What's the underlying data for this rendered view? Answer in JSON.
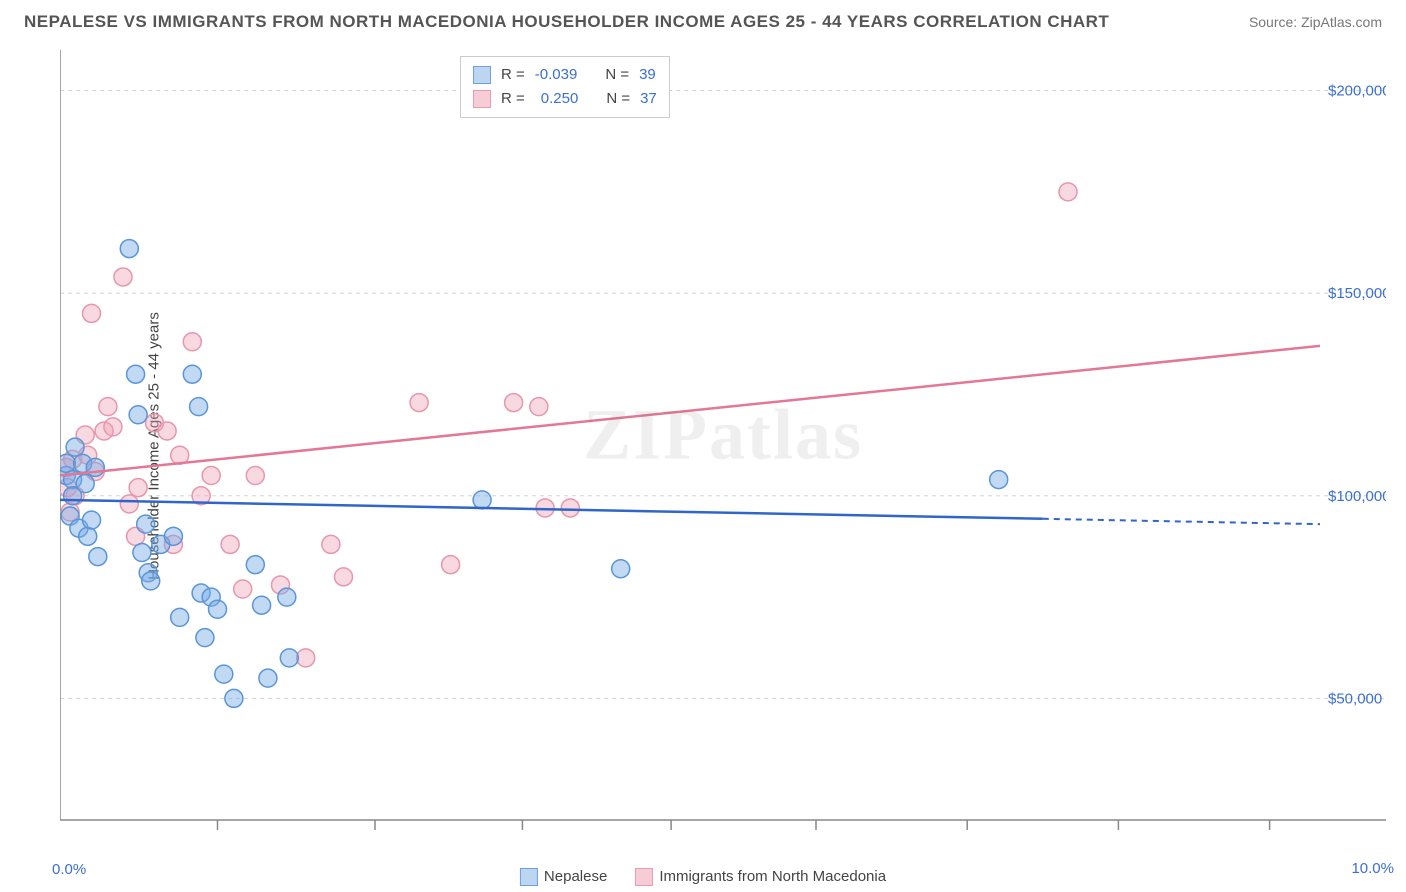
{
  "header": {
    "title": "NEPALESE VS IMMIGRANTS FROM NORTH MACEDONIA HOUSEHOLDER INCOME AGES 25 - 44 YEARS CORRELATION CHART",
    "source_prefix": "Source: ",
    "source_link": "ZipAtlas.com"
  },
  "watermark": "ZIPatlas",
  "chart": {
    "type": "scatter",
    "y_label": "Householder Income Ages 25 - 44 years",
    "xlim": [
      0,
      10
    ],
    "ylim": [
      20000,
      210000
    ],
    "x_ticks": [
      0,
      10
    ],
    "x_tick_labels": [
      "0.0%",
      "10.0%"
    ],
    "x_minor_ticks": [
      1.25,
      2.5,
      3.67,
      4.85,
      6.0,
      7.2,
      8.4,
      9.6
    ],
    "y_ticks": [
      50000,
      100000,
      150000,
      200000
    ],
    "y_tick_labels": [
      "$50,000",
      "$100,000",
      "$150,000",
      "$200,000"
    ],
    "grid_color": "#d5d5d5",
    "background_color": "#ffffff",
    "marker_radius": 9,
    "series_blue": {
      "label": "Nepalese",
      "fill": "rgba(120,170,230,0.45)",
      "stroke": "#5a95d8",
      "swatch_fill": "#bcd5f0",
      "swatch_border": "#6fa0db",
      "R": "-0.039",
      "N": "39",
      "trend": {
        "x0": 0,
        "y0": 99000,
        "x1": 10,
        "y1": 93000,
        "solid_until_x": 7.8
      },
      "points": [
        [
          0.05,
          105000
        ],
        [
          0.05,
          108000
        ],
        [
          0.08,
          95000
        ],
        [
          0.1,
          104000
        ],
        [
          0.1,
          100000
        ],
        [
          0.12,
          112000
        ],
        [
          0.15,
          92000
        ],
        [
          0.18,
          108000
        ],
        [
          0.2,
          103000
        ],
        [
          0.22,
          90000
        ],
        [
          0.25,
          94000
        ],
        [
          0.28,
          107000
        ],
        [
          0.3,
          85000
        ],
        [
          0.55,
          161000
        ],
        [
          0.6,
          130000
        ],
        [
          0.62,
          120000
        ],
        [
          0.65,
          86000
        ],
        [
          0.68,
          93000
        ],
        [
          0.7,
          81000
        ],
        [
          0.72,
          79000
        ],
        [
          0.8,
          88000
        ],
        [
          0.9,
          90000
        ],
        [
          0.95,
          70000
        ],
        [
          1.05,
          130000
        ],
        [
          1.1,
          122000
        ],
        [
          1.12,
          76000
        ],
        [
          1.15,
          65000
        ],
        [
          1.2,
          75000
        ],
        [
          1.25,
          72000
        ],
        [
          1.3,
          56000
        ],
        [
          1.38,
          50000
        ],
        [
          1.55,
          83000
        ],
        [
          1.6,
          73000
        ],
        [
          1.65,
          55000
        ],
        [
          1.8,
          75000
        ],
        [
          1.82,
          60000
        ],
        [
          3.35,
          99000
        ],
        [
          4.45,
          82000
        ],
        [
          7.45,
          104000
        ]
      ]
    },
    "series_pink": {
      "label": "Immigrants from North Macedonia",
      "fill": "rgba(240,160,180,0.4)",
      "stroke": "#e796ab",
      "swatch_fill": "#f6cdd7",
      "swatch_border": "#e99cb1",
      "R": "0.250",
      "N": "37",
      "trend": {
        "x0": 0,
        "y0": 105000,
        "x1": 10,
        "y1": 137000
      },
      "points": [
        [
          0.05,
          107000
        ],
        [
          0.06,
          102000
        ],
        [
          0.08,
          96000
        ],
        [
          0.1,
          109000
        ],
        [
          0.12,
          100000
        ],
        [
          0.2,
          115000
        ],
        [
          0.22,
          110000
        ],
        [
          0.25,
          145000
        ],
        [
          0.28,
          106000
        ],
        [
          0.35,
          116000
        ],
        [
          0.38,
          122000
        ],
        [
          0.42,
          117000
        ],
        [
          0.5,
          154000
        ],
        [
          0.55,
          98000
        ],
        [
          0.6,
          90000
        ],
        [
          0.62,
          102000
        ],
        [
          0.75,
          118000
        ],
        [
          0.85,
          116000
        ],
        [
          0.9,
          88000
        ],
        [
          0.95,
          110000
        ],
        [
          1.05,
          138000
        ],
        [
          1.12,
          100000
        ],
        [
          1.2,
          105000
        ],
        [
          1.35,
          88000
        ],
        [
          1.45,
          77000
        ],
        [
          1.55,
          105000
        ],
        [
          1.75,
          78000
        ],
        [
          1.95,
          60000
        ],
        [
          2.15,
          88000
        ],
        [
          2.25,
          80000
        ],
        [
          2.85,
          123000
        ],
        [
          3.1,
          83000
        ],
        [
          3.6,
          123000
        ],
        [
          3.8,
          122000
        ],
        [
          3.85,
          97000
        ],
        [
          4.05,
          97000
        ],
        [
          8.0,
          175000
        ]
      ]
    }
  },
  "legend_box": {
    "r_label": "R =",
    "n_label": "N ="
  }
}
